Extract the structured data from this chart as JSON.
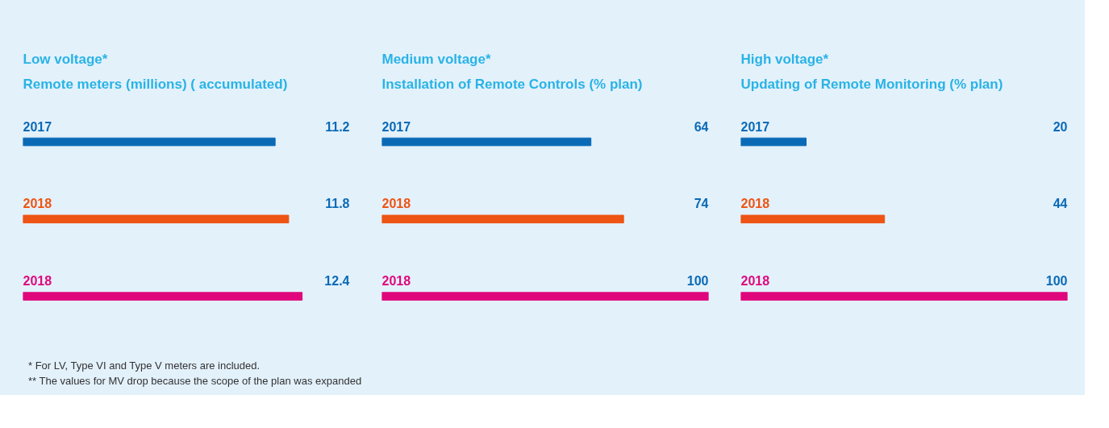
{
  "chart_data": [
    {
      "type": "bar",
      "orientation": "horizontal",
      "title": "Low voltage*",
      "subtitle": "Remote meters (millions) ( accumulated)",
      "categories": [
        "2017",
        "2018",
        "2018"
      ],
      "values": [
        11.2,
        11.8,
        12.4
      ],
      "colors": [
        "#0a6ab6",
        "#ee5413",
        "#e0077d"
      ],
      "tick_labels": false,
      "grid": false,
      "data_labels": true,
      "annotations": [
        "* For LV, Type VI and Type V meters are included.",
        "** The values for MV drop because the scope of the plan was expanded"
      ]
    },
    {
      "type": "bar",
      "orientation": "horizontal",
      "title": "Medium voltage*",
      "subtitle": "Installation of Remote Controls (% plan)",
      "categories": [
        "2017",
        "2018",
        "2018"
      ],
      "values": [
        64,
        74,
        100
      ],
      "colors": [
        "#0a6ab6",
        "#ee5413",
        "#e0077d"
      ],
      "xlim": [
        0,
        100
      ],
      "tick_labels": false,
      "grid": false,
      "data_labels": true
    },
    {
      "type": "bar",
      "orientation": "horizontal",
      "title": "High voltage*",
      "subtitle": "Updating of Remote Monitoring (% plan)",
      "categories": [
        "2017",
        "2018",
        "2018"
      ],
      "values": [
        20,
        44,
        100
      ],
      "colors": [
        "#0a6ab6",
        "#ee5413",
        "#e0077d"
      ],
      "xlim": [
        0,
        100
      ],
      "tick_labels": false,
      "grid": false,
      "data_labels": true
    }
  ]
}
